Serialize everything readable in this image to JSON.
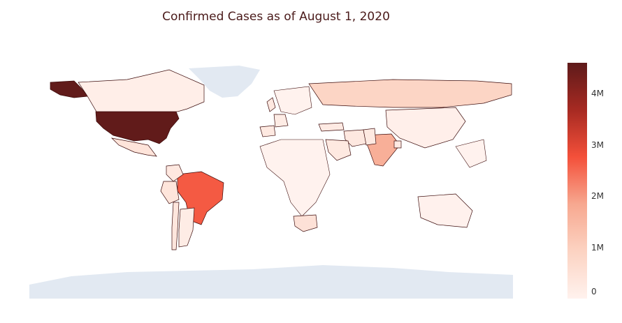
{
  "title": "Confirmed Cases as of August 1, 2020",
  "colors": {
    "ocean": "#ffffff",
    "land_no_data": "#e2e9f2",
    "border": "#3b0a0a",
    "scale": [
      "#fff2ee",
      "#fcd3c2",
      "#f7a890",
      "#f4503a",
      "#a72a22",
      "#5e1a1a"
    ]
  },
  "colorbar": {
    "min": 0,
    "max": 4600000,
    "ticks": [
      {
        "value": 0,
        "label": "0"
      },
      {
        "value": 1000000,
        "label": "1M"
      },
      {
        "value": 2000000,
        "label": "2M"
      },
      {
        "value": 3000000,
        "label": "3M"
      },
      {
        "value": 4000000,
        "label": "4M"
      }
    ]
  },
  "regions": [
    {
      "name": "United States",
      "value": 4560000
    },
    {
      "name": "Brazil",
      "value": 2660000
    },
    {
      "name": "India",
      "value": 1700000
    },
    {
      "name": "Russia",
      "value": 850000
    },
    {
      "name": "South Africa",
      "value": 490000
    },
    {
      "name": "Mexico",
      "value": 420000
    },
    {
      "name": "Peru",
      "value": 400000
    },
    {
      "name": "Chile",
      "value": 350000
    },
    {
      "name": "Colombia",
      "value": 300000
    },
    {
      "name": "Iran",
      "value": 300000
    },
    {
      "name": "United Kingdom",
      "value": 300000
    },
    {
      "name": "Saudi Arabia",
      "value": 275000
    },
    {
      "name": "Spain",
      "value": 280000
    },
    {
      "name": "Pakistan",
      "value": 280000
    },
    {
      "name": "Argentina",
      "value": 190000
    },
    {
      "name": "Bangladesh",
      "value": 240000
    },
    {
      "name": "Turkey",
      "value": 230000
    },
    {
      "name": "France",
      "value": 190000
    },
    {
      "name": "Canada",
      "value": 117000
    },
    {
      "name": "China",
      "value": 88000
    },
    {
      "name": "Australia",
      "value": 17000
    }
  ]
}
